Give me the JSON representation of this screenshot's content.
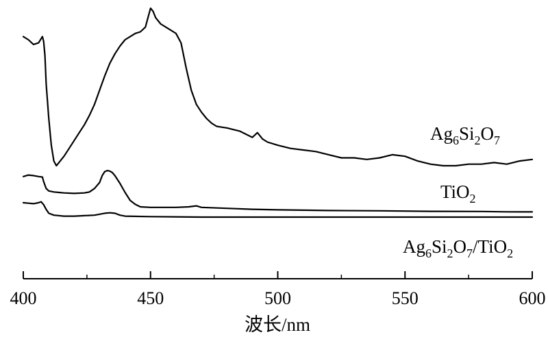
{
  "chart_data": {
    "type": "line",
    "xlabel": "波长/nm",
    "ylabel": "",
    "xlim": [
      400,
      600
    ],
    "y_ticks_shown": false,
    "x_ticks": [
      400,
      450,
      500,
      550,
      600
    ],
    "x_tick_labels": [
      "400",
      "450",
      "500",
      "550",
      "600"
    ],
    "grid": false,
    "legend": "inline labels right of curves",
    "series": [
      {
        "name": "Ag6Si2O7",
        "label_parts": {
          "t1": "Ag",
          "s1": "6",
          "t2": "Si",
          "s2": "2",
          "t3": "O",
          "s3": "7",
          "t4": "",
          "s4": "",
          "t5": ""
        },
        "x": [
          400,
          402,
          404,
          406,
          407.5,
          408,
          408.5,
          409,
          410,
          411,
          412,
          413,
          414,
          416,
          418,
          420,
          422,
          424,
          426,
          428,
          430,
          432,
          434,
          436,
          438,
          440,
          442,
          444,
          446,
          448,
          449,
          450,
          451,
          452,
          454,
          456,
          458,
          460,
          462,
          464,
          466,
          468,
          470,
          472,
          474,
          476,
          478,
          480,
          485,
          490,
          492,
          494,
          496,
          500,
          505,
          510,
          515,
          520,
          525,
          530,
          535,
          540,
          545,
          550,
          555,
          560,
          565,
          570,
          575,
          580,
          585,
          590,
          595,
          600
        ],
        "y": [
          0.82,
          0.8,
          0.77,
          0.78,
          0.82,
          0.79,
          0.7,
          0.52,
          0.3,
          0.13,
          0.03,
          0.0,
          0.02,
          0.06,
          0.11,
          0.16,
          0.21,
          0.26,
          0.32,
          0.39,
          0.48,
          0.57,
          0.65,
          0.71,
          0.76,
          0.8,
          0.82,
          0.84,
          0.85,
          0.88,
          0.94,
          1.0,
          0.98,
          0.94,
          0.9,
          0.88,
          0.86,
          0.84,
          0.78,
          0.62,
          0.48,
          0.39,
          0.34,
          0.3,
          0.27,
          0.25,
          0.245,
          0.24,
          0.22,
          0.18,
          0.21,
          0.17,
          0.15,
          0.13,
          0.11,
          0.1,
          0.09,
          0.07,
          0.05,
          0.05,
          0.04,
          0.05,
          0.07,
          0.06,
          0.03,
          0.01,
          0.0,
          0.0,
          0.01,
          0.01,
          0.02,
          0.01,
          0.03,
          0.04
        ]
      },
      {
        "name": "TiO2",
        "label_parts": {
          "t1": "TiO",
          "s1": "2",
          "t2": "",
          "s2": "",
          "t3": "",
          "s3": "",
          "t4": "",
          "s4": "",
          "t5": ""
        },
        "x": [
          400,
          402,
          404,
          406,
          407.5,
          408,
          409,
          410,
          412,
          414,
          416,
          420,
          424,
          426,
          428,
          430,
          431,
          432,
          433,
          434,
          435,
          436,
          438,
          440,
          442,
          444,
          446,
          450,
          460,
          465,
          468,
          470,
          480,
          490,
          500,
          520,
          540,
          560,
          580,
          590,
          600
        ],
        "y": [
          0.36,
          0.375,
          0.37,
          0.36,
          0.355,
          0.31,
          0.24,
          0.215,
          0.205,
          0.2,
          0.195,
          0.19,
          0.195,
          0.205,
          0.24,
          0.3,
          0.37,
          0.41,
          0.42,
          0.415,
          0.4,
          0.37,
          0.29,
          0.2,
          0.12,
          0.08,
          0.055,
          0.05,
          0.05,
          0.055,
          0.065,
          0.05,
          0.04,
          0.03,
          0.025,
          0.018,
          0.015,
          0.01,
          0.008,
          0.005,
          0.004
        ]
      },
      {
        "name": "Ag6Si2O7/TiO2",
        "label_parts": {
          "t1": "Ag",
          "s1": "6",
          "t2": "Si",
          "s2": "2",
          "t3": "O",
          "s3": "7",
          "t4": "/TiO",
          "s4": "2",
          "t5": ""
        },
        "x": [
          400,
          402,
          404,
          406,
          407,
          408,
          409,
          410,
          412,
          416,
          420,
          424,
          428,
          430,
          432,
          434,
          436,
          438,
          440,
          450,
          470,
          500,
          550,
          600
        ],
        "y": [
          0.15,
          0.145,
          0.14,
          0.15,
          0.16,
          0.13,
          0.08,
          0.04,
          0.02,
          0.01,
          0.01,
          0.015,
          0.02,
          0.03,
          0.04,
          0.045,
          0.04,
          0.02,
          0.01,
          0.005,
          0.0,
          0.0,
          0.0,
          0.0
        ]
      }
    ]
  }
}
